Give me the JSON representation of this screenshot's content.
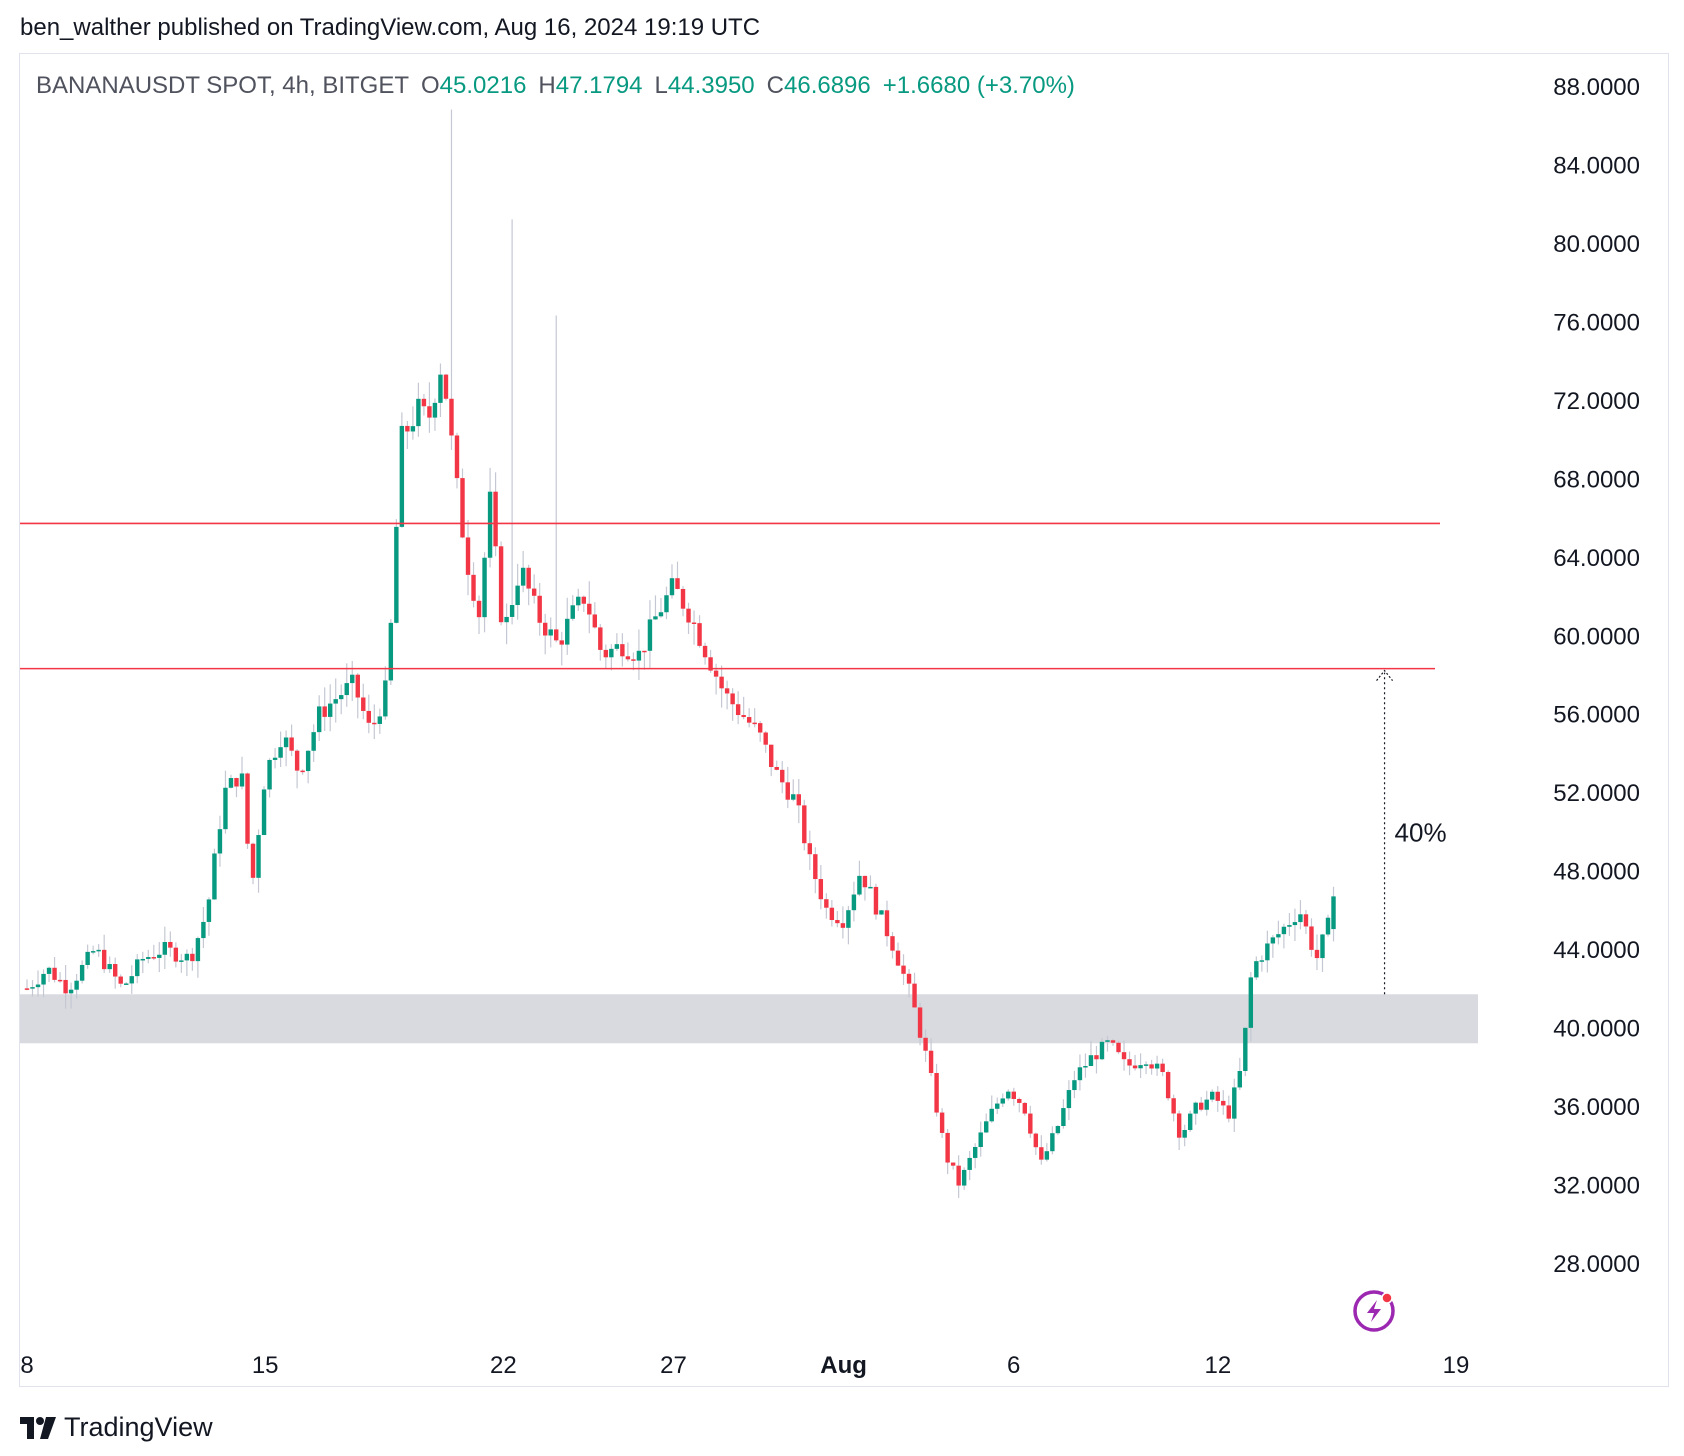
{
  "header": {
    "published_text": "ben_walther published on TradingView.com, Aug 16, 2024 19:19 UTC"
  },
  "legend": {
    "symbol": "BANANAUSDT SPOT, 4h, BITGET",
    "open_label": "O",
    "open_value": "45.0216",
    "high_label": "H",
    "high_value": "47.1794",
    "low_label": "L",
    "low_value": "44.3950",
    "close_label": "C",
    "close_value": "46.6896",
    "change": "+1.6680 (+3.70%)"
  },
  "footer": {
    "brand": "TradingView"
  },
  "colors": {
    "up": "#089981",
    "down": "#f23645",
    "wick": "#c5c8d3",
    "zone": "#d9dadf",
    "level_line": "#f23645"
  },
  "chart_data": {
    "type": "candlestick",
    "interval": "4h",
    "y_axis_labels": [
      "88.0000",
      "84.0000",
      "80.0000",
      "76.0000",
      "72.0000",
      "68.0000",
      "64.0000",
      "60.0000",
      "56.0000",
      "52.0000",
      "48.0000",
      "44.0000",
      "40.0000",
      "36.0000",
      "32.0000",
      "28.0000"
    ],
    "ylim": [
      24,
      89
    ],
    "x_axis_labels": [
      {
        "label": "8",
        "day": 8
      },
      {
        "label": "15",
        "day": 15
      },
      {
        "label": "22",
        "day": 22
      },
      {
        "label": "27",
        "day": 27
      },
      {
        "label": "Aug",
        "day": 32,
        "bold": true
      },
      {
        "label": "6",
        "day": 37
      },
      {
        "label": "12",
        "day": 43
      },
      {
        "label": "19",
        "day": 50
      }
    ],
    "xlim_days": [
      8,
      50
    ],
    "horizontal_levels": [
      65.7,
      58.3
    ],
    "support_zone": [
      39.2,
      41.7
    ],
    "measure_annotation": {
      "label": "40%",
      "from": 41.7,
      "to": 58.3,
      "day": 47.9
    },
    "anchors": [
      [
        8.0,
        42
      ],
      [
        8.6,
        43
      ],
      [
        9.2,
        42
      ],
      [
        10.0,
        44
      ],
      [
        10.8,
        42
      ],
      [
        11.4,
        43.5
      ],
      [
        12.0,
        44
      ],
      [
        12.8,
        43.5
      ],
      [
        13.3,
        46
      ],
      [
        13.8,
        52
      ],
      [
        14.3,
        53
      ],
      [
        14.6,
        47
      ],
      [
        15.0,
        53
      ],
      [
        15.5,
        55
      ],
      [
        16.0,
        53
      ],
      [
        16.6,
        56
      ],
      [
        17.2,
        57
      ],
      [
        17.6,
        57.5
      ],
      [
        18.1,
        55
      ],
      [
        18.6,
        57.5
      ],
      [
        19.0,
        70
      ],
      [
        19.5,
        71.5
      ],
      [
        19.8,
        71
      ],
      [
        20.2,
        74
      ],
      [
        20.6,
        68
      ],
      [
        20.9,
        64
      ],
      [
        21.3,
        61
      ],
      [
        21.6,
        67
      ],
      [
        22.0,
        60
      ],
      [
        22.5,
        63.5
      ],
      [
        23.0,
        61
      ],
      [
        23.6,
        59.5
      ],
      [
        24.0,
        61
      ],
      [
        24.4,
        62
      ],
      [
        24.9,
        59
      ],
      [
        25.5,
        59.5
      ],
      [
        26.0,
        59
      ],
      [
        26.5,
        61
      ],
      [
        27.0,
        62.5
      ],
      [
        27.5,
        61
      ],
      [
        28.0,
        59
      ],
      [
        28.5,
        57
      ],
      [
        29.0,
        56
      ],
      [
        29.5,
        55
      ],
      [
        30.0,
        53
      ],
      [
        30.6,
        51.5
      ],
      [
        31.0,
        48.5
      ],
      [
        31.5,
        46
      ],
      [
        32.0,
        45.5
      ],
      [
        32.5,
        48
      ],
      [
        33.0,
        46
      ],
      [
        33.5,
        44
      ],
      [
        34.0,
        41.5
      ],
      [
        34.5,
        38
      ],
      [
        35.0,
        33.5
      ],
      [
        35.4,
        32
      ],
      [
        35.9,
        34
      ],
      [
        36.3,
        35.5
      ],
      [
        36.8,
        37
      ],
      [
        37.3,
        36
      ],
      [
        37.8,
        33
      ],
      [
        38.3,
        35
      ],
      [
        38.8,
        37.5
      ],
      [
        39.3,
        38.5
      ],
      [
        39.8,
        39.2
      ],
      [
        40.3,
        38
      ],
      [
        40.9,
        38.5
      ],
      [
        41.4,
        37.5
      ],
      [
        41.9,
        34.5
      ],
      [
        42.4,
        36
      ],
      [
        42.9,
        36.5
      ],
      [
        43.3,
        35.5
      ],
      [
        43.7,
        38
      ],
      [
        44.0,
        43
      ],
      [
        44.4,
        44
      ],
      [
        44.9,
        45
      ],
      [
        45.4,
        46
      ],
      [
        45.9,
        43.5
      ],
      [
        46.4,
        46
      ]
    ],
    "candle_count": 238,
    "last_candle": {
      "open": 45.0216,
      "high": 47.1794,
      "low": 44.395,
      "close": 46.6896
    }
  }
}
